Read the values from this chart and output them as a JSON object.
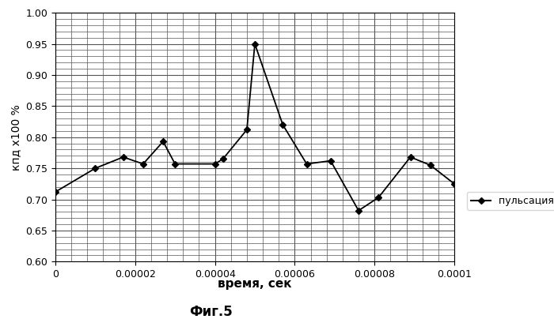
{
  "x": [
    0,
    1e-05,
    1.7e-05,
    2.2e-05,
    2.7e-05,
    3e-05,
    4e-05,
    4.2e-05,
    4.8e-05,
    5e-05,
    5.7e-05,
    6.3e-05,
    6.9e-05,
    7.6e-05,
    8.1e-05,
    8.9e-05,
    9.4e-05,
    0.0001
  ],
  "y": [
    0.712,
    0.75,
    0.768,
    0.757,
    0.793,
    0.757,
    0.757,
    0.765,
    0.812,
    0.95,
    0.82,
    0.757,
    0.762,
    0.682,
    0.703,
    0.768,
    0.755,
    0.725
  ],
  "line_color": "#000000",
  "marker": "D",
  "marker_size": 4,
  "marker_facecolor": "#000000",
  "xlabel": "время, сек",
  "ylabel": "кпд х100 %",
  "xlim": [
    0,
    0.0001
  ],
  "ylim": [
    0.6,
    1.0
  ],
  "xticks": [
    0,
    2e-05,
    4e-05,
    6e-05,
    8e-05,
    0.0001
  ],
  "yticks": [
    0.6,
    0.65,
    0.7,
    0.75,
    0.8,
    0.85,
    0.9,
    0.95,
    1.0
  ],
  "legend_label": "пульсация кпд",
  "caption": "Фиг.5",
  "grid_color": "#555555",
  "minor_grid_color": "#aaaaaa",
  "background_color": "#ffffff"
}
